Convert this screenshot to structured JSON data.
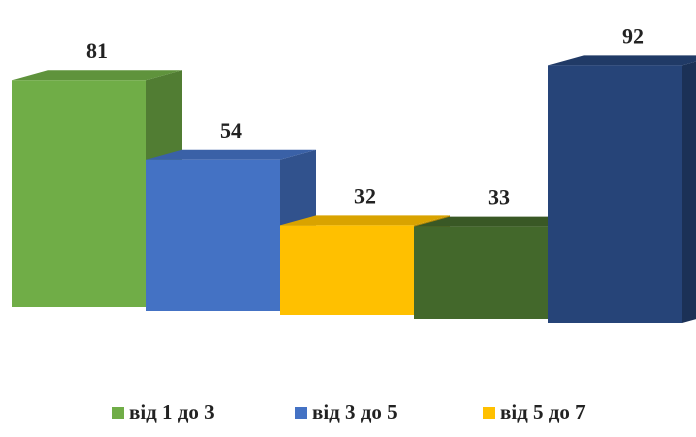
{
  "chart_data": {
    "type": "bar",
    "title": "",
    "xlabel": "",
    "ylabel": "",
    "categories": [
      "",
      "",
      "",
      "",
      ""
    ],
    "values": [
      81,
      54,
      32,
      33,
      92
    ],
    "bar_colors": [
      "#70ad47",
      "#4472c4",
      "#ffc000",
      "#43682b",
      "#264478"
    ],
    "ylim": [
      0,
      100
    ],
    "grid": false,
    "three_d": true,
    "legend": {
      "placement": "bottom",
      "entries": [
        {
          "name": "від 1 до 3",
          "color": "#70ad47"
        },
        {
          "name": "від 3 до 5",
          "color": "#4472c4"
        },
        {
          "name": "від 5 до 7",
          "color": "#ffc000"
        }
      ]
    }
  }
}
